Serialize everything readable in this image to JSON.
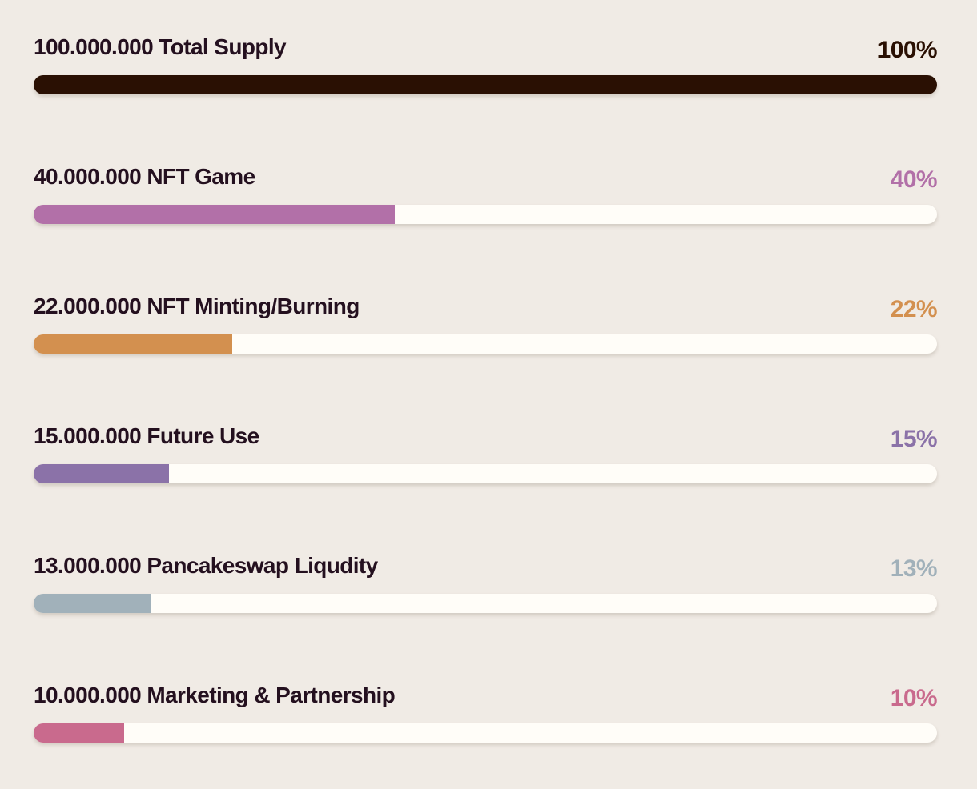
{
  "chart_data": {
    "type": "bar",
    "orientation": "horizontal",
    "unit": "%",
    "xlim": [
      0,
      100
    ],
    "grid": false,
    "items": [
      {
        "label": "100.000.000 Total Supply",
        "value": 100,
        "pct_label": "100%",
        "color": "#2a1003"
      },
      {
        "label": "40.000.000 NFT Game",
        "value": 40,
        "pct_label": "40%",
        "color": "#b270a8"
      },
      {
        "label": "22.000.000 NFT Minting/Burning",
        "value": 22,
        "pct_label": "22%",
        "color": "#d3904f"
      },
      {
        "label": "15.000.000 Future Use",
        "value": 15,
        "pct_label": "15%",
        "color": "#8b72a8"
      },
      {
        "label": "13.000.000 Pancakeswap Liqudity",
        "value": 13,
        "pct_label": "13%",
        "color": "#a1b1ba"
      },
      {
        "label": "10.000.000 Marketing & Partnership",
        "value": 10,
        "pct_label": "10%",
        "color": "#c96a8d"
      }
    ]
  }
}
